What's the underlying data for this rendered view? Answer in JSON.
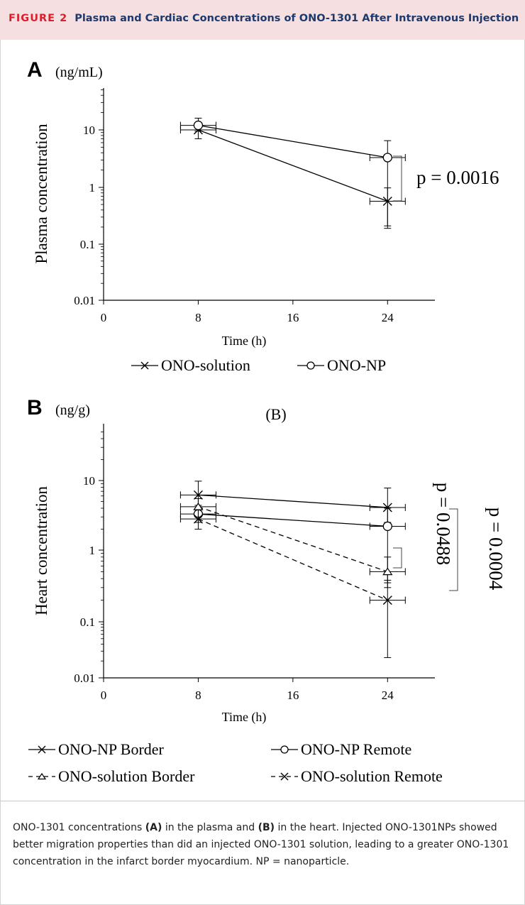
{
  "figure": {
    "label": "FIGURE 2",
    "title": "Plasma and Cardiac Concentrations of ONO-1301 After Intravenous Injection"
  },
  "caption": {
    "part1": "ONO-1301 concentrations ",
    "bold_a": "(A)",
    "part2": " in the plasma and ",
    "bold_b": "(B)",
    "part3": " in the heart. Injected ONO-1301NPs showed better migration properties than did an injected ONO-1301 solution, leading to a greater ONO-1301 concentration in the infarct border myocardium. NP = nanoparticle."
  },
  "chart_data": [
    {
      "type": "line",
      "panel_label": "A",
      "unit_label": "(ng/mL)",
      "title": "",
      "xlabel": "Time (h)",
      "ylabel": "Plasma concentration",
      "y_scale": "log",
      "xlim": [
        0,
        28
      ],
      "ylim": [
        0.01,
        50
      ],
      "x_ticks": [
        "0",
        "8",
        "16",
        "24"
      ],
      "y_ticks": [
        "0.01",
        "0.1",
        "1",
        "10"
      ],
      "legend_placement": "bottom",
      "x": [
        8,
        24
      ],
      "series": [
        {
          "name": "ONO-solution",
          "marker": "x",
          "dash": "solid",
          "values": [
            10,
            0.57
          ],
          "y_err_low": [
            7,
            0.21
          ],
          "y_err_high": [
            13.5,
            0.98
          ],
          "x_err": [
            1.5,
            1.5
          ]
        },
        {
          "name": "ONO-NP",
          "marker": "o",
          "dash": "solid",
          "values": [
            12,
            3.3
          ],
          "y_err_low": [
            9.5,
            0.19
          ],
          "y_err_high": [
            16,
            6.5
          ],
          "x_err": [
            1.5,
            1.5
          ]
        }
      ],
      "annotations": [
        {
          "text": "p = 0.0016",
          "between": [
            "ONO-NP",
            "ONO-solution"
          ],
          "at_x": 24
        }
      ]
    },
    {
      "type": "line",
      "panel_label": "B",
      "unit_label": "(ng/g)",
      "title": "(B)",
      "xlabel": "Time (h)",
      "ylabel": "Heart concentration",
      "y_scale": "log",
      "xlim": [
        0,
        28
      ],
      "ylim": [
        0.01,
        50
      ],
      "x_ticks": [
        "0",
        "8",
        "16",
        "24"
      ],
      "y_ticks": [
        "0.01",
        "0.1",
        "1",
        "10"
      ],
      "legend_placement": "bottom",
      "x": [
        8,
        24
      ],
      "series": [
        {
          "name": "ONO-NP Border",
          "marker": "x",
          "dash": "solid",
          "values": [
            6.2,
            4.1
          ],
          "y_err_low": [
            4.0,
            2.5
          ],
          "y_err_high": [
            9.8,
            7.8
          ],
          "x_err": [
            1.5,
            1.5
          ]
        },
        {
          "name": "ONO-NP Remote",
          "marker": "o",
          "dash": "solid",
          "values": [
            3.3,
            2.2
          ],
          "y_err_low": [
            2.5,
            0.3
          ],
          "y_err_high": [
            4.4,
            4.0
          ],
          "x_err": [
            1.5,
            1.5
          ]
        },
        {
          "name": "ONO-solution Border",
          "marker": "triangle",
          "dash": "dashed",
          "values": [
            4.2,
            0.5
          ],
          "y_err_low": [
            3.0,
            0.35
          ],
          "y_err_high": [
            5.5,
            0.8
          ],
          "x_err": [
            1.5,
            1.5
          ]
        },
        {
          "name": "ONO-solution Remote",
          "marker": "x",
          "dash": "dashed",
          "values": [
            2.8,
            0.2
          ],
          "y_err_low": [
            2.0,
            0.023
          ],
          "y_err_high": [
            3.8,
            0.38
          ],
          "x_err": [
            1.5,
            1.5
          ]
        }
      ],
      "annotations": [
        {
          "text": "p = 0.0488",
          "between": [
            "ONO-NP Border",
            "ONO-NP Remote"
          ],
          "at_x": 24,
          "rotation": 90
        },
        {
          "text": "p = 0.0004",
          "between": [
            "ONO-NP Border",
            "ONO-solution Border"
          ],
          "at_x": 24,
          "rotation": 90
        }
      ]
    }
  ]
}
